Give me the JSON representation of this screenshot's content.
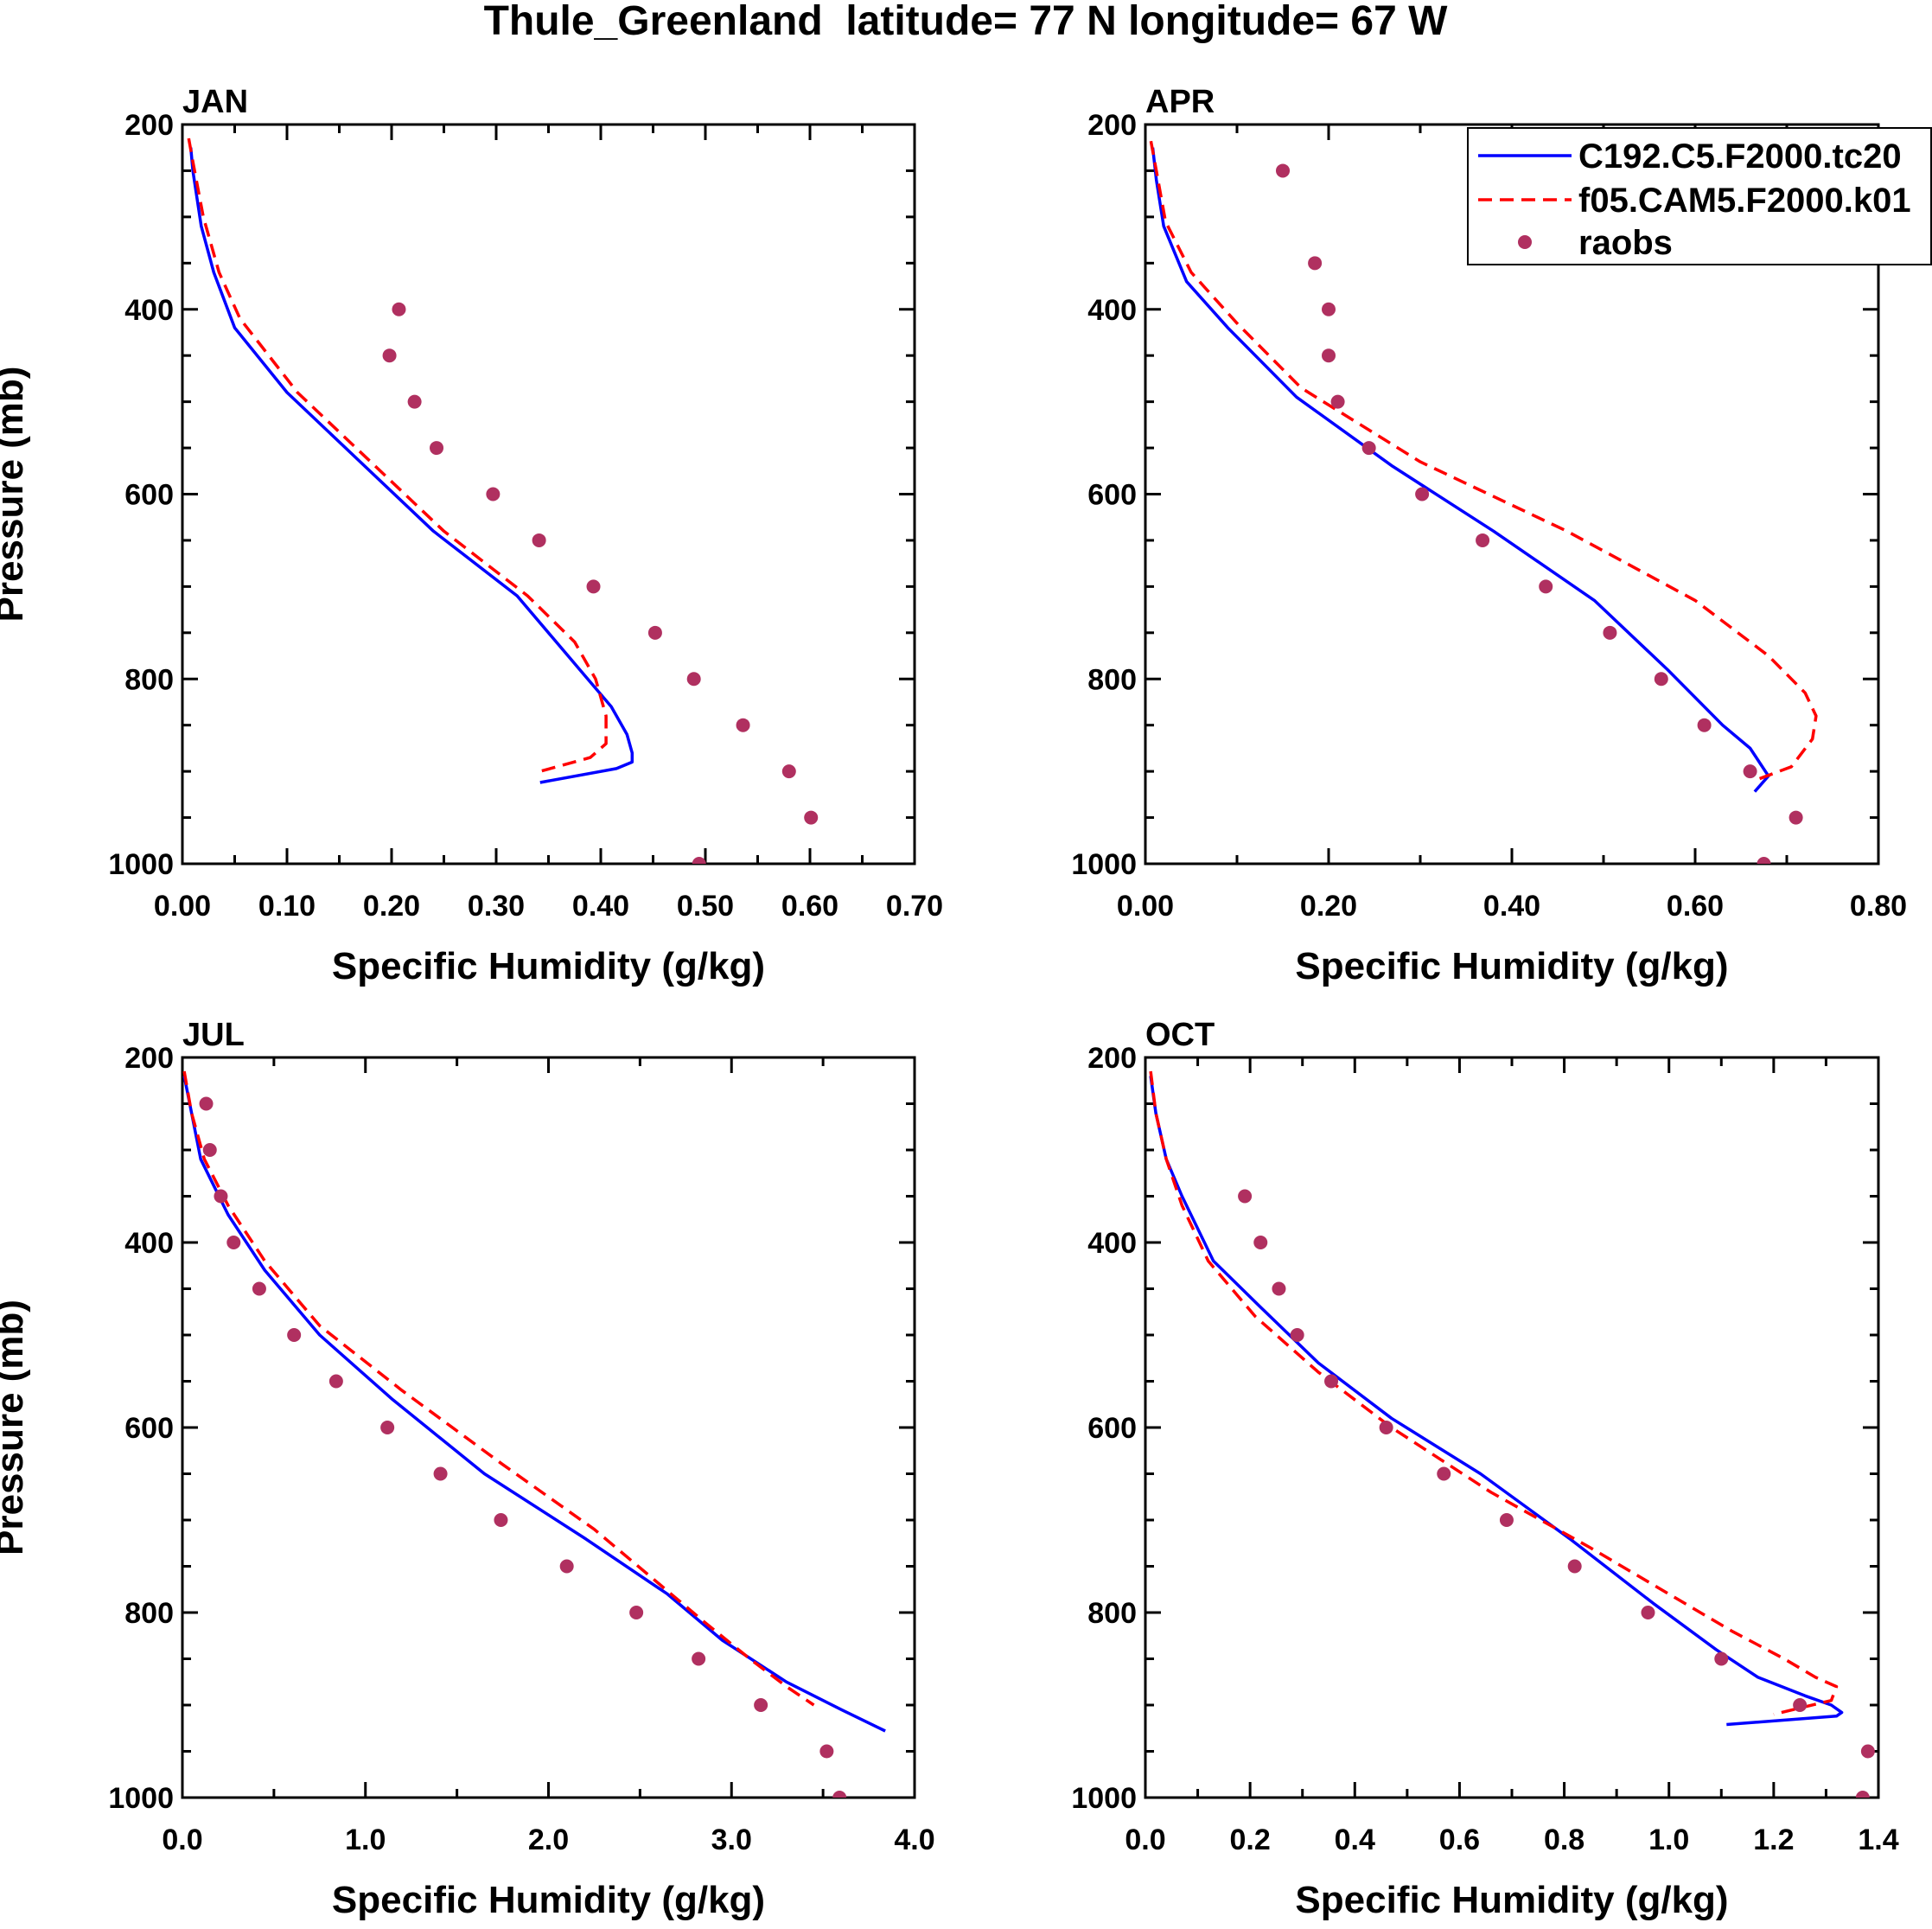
{
  "figure_title": "Thule_Greenland  latitude= 77 N longitude= 67 W",
  "legend": {
    "entries": [
      {
        "label": "C192.C5.F2000.tc20",
        "style": "solid",
        "color": "#0000ff"
      },
      {
        "label": "f05.CAM5.F2000.k01",
        "style": "dashed",
        "color": "#ff0000"
      },
      {
        "label": "raobs",
        "style": "marker",
        "color": "#b03060"
      }
    ]
  },
  "colors": {
    "model1": "#0000ff",
    "model2": "#ff0000",
    "obs": "#b03060"
  },
  "chart_data": [
    {
      "type": "line",
      "panel": "JAN",
      "title": "JAN",
      "xlabel": "Specific Humidity (g/kg)",
      "ylabel": "Pressure (mb)",
      "xlim": [
        0,
        0.7
      ],
      "ylim": [
        1000,
        200
      ],
      "xticks": [
        0,
        0.1,
        0.2,
        0.3,
        0.4,
        0.5,
        0.6,
        0.7
      ],
      "xtick_labels": [
        "0.00",
        "0.10",
        "0.20",
        "0.30",
        "0.40",
        "0.50",
        "0.60",
        "0.70"
      ],
      "yticks": [
        200,
        400,
        600,
        800,
        1000
      ],
      "ytick_labels": [
        "200",
        "400",
        "600",
        "800",
        "1000"
      ],
      "series": [
        {
          "name": "C192.C5.F2000.tc20",
          "style": "solid",
          "x": [
            0.008,
            0.01,
            0.018,
            0.03,
            0.05,
            0.1,
            0.17,
            0.24,
            0.32,
            0.38,
            0.41,
            0.425,
            0.43,
            0.43,
            0.415,
            0.342
          ],
          "y": [
            225,
            250,
            310,
            360,
            420,
            490,
            565,
            640,
            710,
            790,
            830,
            860,
            880,
            890,
            897,
            912
          ]
        },
        {
          "name": "f05.CAM5.F2000.k01",
          "style": "dashed",
          "x": [
            0.006,
            0.01,
            0.02,
            0.035,
            0.055,
            0.11,
            0.18,
            0.25,
            0.33,
            0.375,
            0.395,
            0.405,
            0.405,
            0.39,
            0.342
          ],
          "y": [
            215,
            240,
            300,
            360,
            410,
            490,
            565,
            640,
            710,
            760,
            800,
            840,
            870,
            885,
            900
          ]
        },
        {
          "name": "raobs",
          "style": "marker",
          "x": [
            0.207,
            0.198,
            0.222,
            0.243,
            0.297,
            0.341,
            0.393,
            0.452,
            0.489,
            0.536,
            0.58,
            0.601,
            0.494
          ],
          "y": [
            400,
            450,
            500,
            550,
            600,
            650,
            700,
            750,
            800,
            850,
            900,
            950,
            1000
          ]
        }
      ]
    },
    {
      "type": "line",
      "panel": "APR",
      "title": "APR",
      "xlabel": "Specific Humidity (g/kg)",
      "ylabel": "",
      "xlim": [
        0,
        0.8
      ],
      "ylim": [
        1000,
        200
      ],
      "xticks": [
        0,
        0.2,
        0.4,
        0.6,
        0.8
      ],
      "xtick_labels": [
        "0.00",
        "0.20",
        "0.40",
        "0.60",
        "0.80"
      ],
      "yticks": [
        200,
        400,
        600,
        800,
        1000
      ],
      "ytick_labels": [
        "200",
        "400",
        "600",
        "800",
        "1000"
      ],
      "series": [
        {
          "name": "C192.C5.F2000.tc20",
          "style": "solid",
          "x": [
            0.008,
            0.012,
            0.02,
            0.045,
            0.09,
            0.165,
            0.27,
            0.38,
            0.49,
            0.57,
            0.63,
            0.66,
            0.672,
            0.68,
            0.665
          ],
          "y": [
            225,
            260,
            310,
            370,
            420,
            495,
            570,
            640,
            715,
            790,
            850,
            875,
            893,
            905,
            922
          ]
        },
        {
          "name": "f05.CAM5.F2000.k01",
          "style": "dashed",
          "x": [
            0.006,
            0.012,
            0.022,
            0.05,
            0.1,
            0.17,
            0.3,
            0.46,
            0.6,
            0.68,
            0.72,
            0.732,
            0.728,
            0.705,
            0.67
          ],
          "y": [
            218,
            250,
            305,
            360,
            415,
            485,
            565,
            640,
            715,
            775,
            815,
            840,
            865,
            895,
            908
          ]
        },
        {
          "name": "raobs",
          "style": "marker",
          "x": [
            0.15,
            0.185,
            0.2,
            0.2,
            0.21,
            0.244,
            0.302,
            0.368,
            0.437,
            0.507,
            0.563,
            0.61,
            0.66,
            0.71,
            0.675
          ],
          "y": [
            250,
            350,
            400,
            450,
            500,
            550,
            600,
            650,
            700,
            750,
            800,
            850,
            900,
            950,
            1000
          ]
        }
      ]
    },
    {
      "type": "line",
      "panel": "JUL",
      "title": "JUL",
      "xlabel": "Specific Humidity (g/kg)",
      "ylabel": "Pressure (mb)",
      "xlim": [
        0,
        4
      ],
      "ylim": [
        1000,
        200
      ],
      "xticks": [
        0,
        1,
        2,
        3,
        4
      ],
      "xtick_labels": [
        "0.0",
        "1.0",
        "2.0",
        "3.0",
        "4.0"
      ],
      "yticks": [
        200,
        400,
        600,
        800,
        1000
      ],
      "ytick_labels": [
        "200",
        "400",
        "600",
        "800",
        "1000"
      ],
      "series": [
        {
          "name": "C192.C5.F2000.tc20",
          "style": "solid",
          "x": [
            0.01,
            0.05,
            0.1,
            0.25,
            0.45,
            0.75,
            1.15,
            1.65,
            2.2,
            2.65,
            2.95,
            3.3,
            3.6,
            3.84
          ],
          "y": [
            220,
            260,
            310,
            370,
            430,
            500,
            570,
            650,
            720,
            780,
            830,
            875,
            905,
            928
          ]
        },
        {
          "name": "f05.CAM5.F2000.k01",
          "style": "dashed",
          "x": [
            0.01,
            0.05,
            0.12,
            0.25,
            0.45,
            0.75,
            1.2,
            1.75,
            2.25,
            2.55,
            2.85,
            3.1,
            3.3,
            3.45
          ],
          "y": [
            215,
            260,
            310,
            360,
            420,
            490,
            560,
            640,
            710,
            760,
            810,
            850,
            880,
            900
          ]
        },
        {
          "name": "raobs",
          "style": "marker",
          "x": [
            0.13,
            0.15,
            0.21,
            0.28,
            0.42,
            0.61,
            0.84,
            1.12,
            1.41,
            1.74,
            2.1,
            2.48,
            2.82,
            3.16,
            3.52,
            3.59
          ],
          "y": [
            250,
            300,
            350,
            400,
            450,
            500,
            550,
            600,
            650,
            700,
            750,
            800,
            850,
            900,
            950,
            1000
          ]
        }
      ]
    },
    {
      "type": "line",
      "panel": "OCT",
      "title": "OCT",
      "xlabel": "Specific Humidity (g/kg)",
      "ylabel": "",
      "xlim": [
        0,
        1.4
      ],
      "ylim": [
        1000,
        200
      ],
      "xticks": [
        0,
        0.2,
        0.4,
        0.6,
        0.8,
        1.0,
        1.2,
        1.4
      ],
      "xtick_labels": [
        "0.0",
        "0.2",
        "0.4",
        "0.6",
        "0.8",
        "1.0",
        "1.2",
        "1.4"
      ],
      "yticks": [
        200,
        400,
        600,
        800,
        1000
      ],
      "ytick_labels": [
        "200",
        "400",
        "600",
        "800",
        "1000"
      ],
      "series": [
        {
          "name": "C192.C5.F2000.tc20",
          "style": "solid",
          "x": [
            0.01,
            0.02,
            0.04,
            0.07,
            0.13,
            0.22,
            0.33,
            0.47,
            0.64,
            0.81,
            0.97,
            1.09,
            1.17,
            1.26,
            1.31,
            1.33,
            1.32,
            1.11
          ],
          "y": [
            220,
            260,
            310,
            350,
            420,
            470,
            530,
            590,
            650,
            720,
            790,
            840,
            870,
            890,
            900,
            908,
            912,
            921
          ]
        },
        {
          "name": "f05.CAM5.F2000.k01",
          "style": "dashed",
          "x": [
            0.01,
            0.02,
            0.04,
            0.07,
            0.12,
            0.21,
            0.33,
            0.47,
            0.66,
            0.85,
            1.0,
            1.12,
            1.22,
            1.28,
            1.32,
            1.31,
            1.2
          ],
          "y": [
            215,
            260,
            310,
            360,
            420,
            480,
            540,
            600,
            670,
            730,
            780,
            820,
            850,
            870,
            880,
            895,
            910
          ]
        },
        {
          "name": "raobs",
          "style": "marker",
          "x": [
            0.19,
            0.22,
            0.255,
            0.29,
            0.355,
            0.46,
            0.57,
            0.69,
            0.82,
            0.96,
            1.1,
            1.25,
            1.38,
            1.37
          ],
          "y": [
            350,
            400,
            450,
            500,
            550,
            600,
            650,
            700,
            750,
            800,
            850,
            900,
            950,
            1000
          ]
        }
      ]
    }
  ]
}
